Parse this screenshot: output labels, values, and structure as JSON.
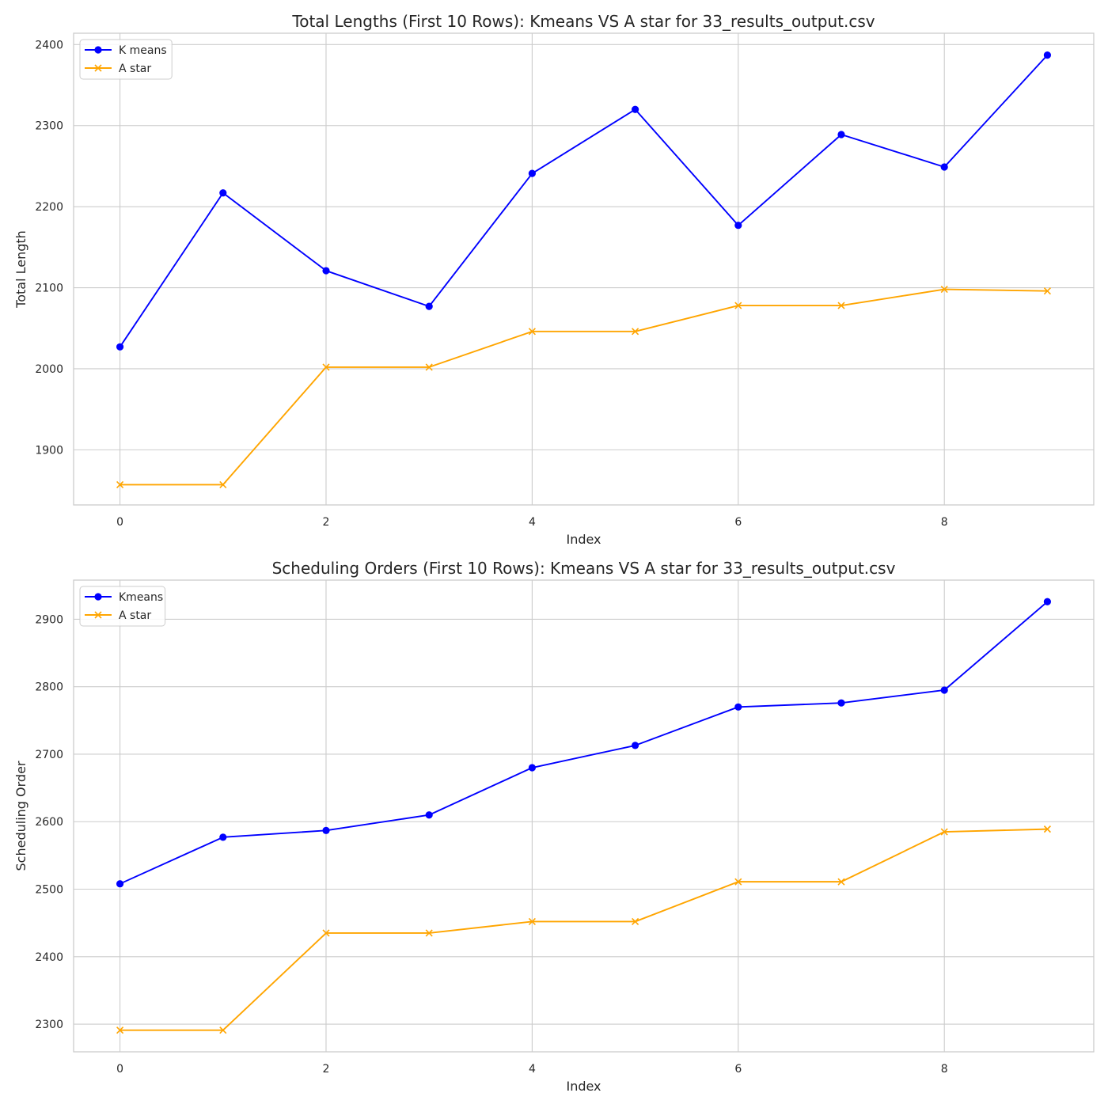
{
  "chart_data": [
    {
      "type": "line",
      "title": "Total Lengths (First 10 Rows): Kmeans VS A star for 33_results_output.csv",
      "xlabel": "Index",
      "ylabel": "Total Length",
      "x": [
        0,
        1,
        2,
        3,
        4,
        5,
        6,
        7,
        8,
        9
      ],
      "xticks": [
        "0",
        "2",
        "4",
        "6",
        "8"
      ],
      "yticks": [
        "1900",
        "2000",
        "2100",
        "2200",
        "2300",
        "2400"
      ],
      "xlim": [
        -0.45,
        9.45
      ],
      "ylim": [
        1832,
        2414
      ],
      "grid": true,
      "legend_position": "top-left",
      "series": [
        {
          "name": "K means",
          "color": "#0000ff",
          "marker": "circle",
          "values": [
            2027,
            2217,
            2121,
            2077,
            2241,
            2320,
            2177,
            2289,
            2249,
            2387
          ]
        },
        {
          "name": "A star",
          "color": "#ffa500",
          "marker": "x",
          "values": [
            1857,
            1857,
            2002,
            2002,
            2046,
            2046,
            2078,
            2078,
            2098,
            2096
          ]
        }
      ]
    },
    {
      "type": "line",
      "title": "Scheduling Orders (First 10 Rows): Kmeans VS A star for 33_results_output.csv",
      "xlabel": "Index",
      "ylabel": "Scheduling Order",
      "x": [
        0,
        1,
        2,
        3,
        4,
        5,
        6,
        7,
        8,
        9
      ],
      "xticks": [
        "0",
        "2",
        "4",
        "6",
        "8"
      ],
      "yticks": [
        "2300",
        "2400",
        "2500",
        "2600",
        "2700",
        "2800",
        "2900"
      ],
      "xlim": [
        -0.45,
        9.45
      ],
      "ylim": [
        2259,
        2958
      ],
      "grid": true,
      "legend_position": "top-left",
      "series": [
        {
          "name": "Kmeans",
          "color": "#0000ff",
          "marker": "circle",
          "values": [
            2508,
            2577,
            2587,
            2610,
            2680,
            2713,
            2770,
            2776,
            2795,
            2926
          ]
        },
        {
          "name": "A star",
          "color": "#ffa500",
          "marker": "x",
          "values": [
            2291,
            2291,
            2435,
            2435,
            2452,
            2452,
            2511,
            2511,
            2585,
            2589
          ]
        }
      ]
    }
  ]
}
